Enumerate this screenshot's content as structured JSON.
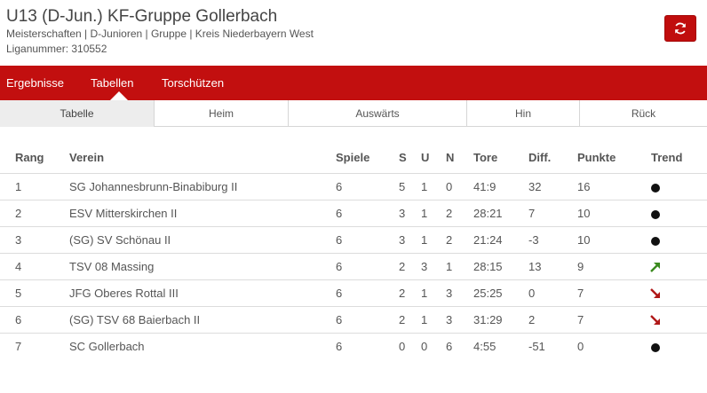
{
  "header": {
    "title": "U13 (D-Jun.) KF-Gruppe Gollerbach",
    "subtitle": "Meisterschaften | D-Junioren | Gruppe | Kreis Niederbayern West",
    "liganummer": "Liganummer: 310552",
    "refresh_icon": "refresh-icon"
  },
  "colors": {
    "brand_red": "#c20f0f",
    "trend_up": "#3a8a1e",
    "trend_down": "#b01818",
    "trend_same": "#111111"
  },
  "nav": {
    "items": [
      {
        "label": "Ergebnisse"
      },
      {
        "label": "Tabellen"
      },
      {
        "label": "Torschützen"
      }
    ],
    "active": "Tabellen"
  },
  "subtabs": {
    "items": [
      {
        "label": "Tabelle"
      },
      {
        "label": "Heim"
      },
      {
        "label": "Auswärts"
      },
      {
        "label": "Hin"
      },
      {
        "label": "Rück"
      }
    ],
    "active": "Tabelle"
  },
  "table": {
    "headers": {
      "rang": "Rang",
      "verein": "Verein",
      "spiele": "Spiele",
      "s": "S",
      "u": "U",
      "n": "N",
      "tore": "Tore",
      "diff": "Diff.",
      "punkte": "Punkte",
      "trend": "Trend"
    },
    "rows": [
      {
        "rang": "1",
        "verein": "SG Johannesbrunn-Binabiburg II",
        "spiele": "6",
        "s": "5",
        "u": "1",
        "n": "0",
        "tore": "41:9",
        "diff": "32",
        "punkte": "16",
        "trend": "same"
      },
      {
        "rang": "2",
        "verein": "ESV Mitterskirchen II",
        "spiele": "6",
        "s": "3",
        "u": "1",
        "n": "2",
        "tore": "28:21",
        "diff": "7",
        "punkte": "10",
        "trend": "same"
      },
      {
        "rang": "3",
        "verein": "(SG) SV Schönau II",
        "spiele": "6",
        "s": "3",
        "u": "1",
        "n": "2",
        "tore": "21:24",
        "diff": "-3",
        "punkte": "10",
        "trend": "same"
      },
      {
        "rang": "4",
        "verein": "TSV 08 Massing",
        "spiele": "6",
        "s": "2",
        "u": "3",
        "n": "1",
        "tore": "28:15",
        "diff": "13",
        "punkte": "9",
        "trend": "up"
      },
      {
        "rang": "5",
        "verein": "JFG Oberes Rottal III",
        "spiele": "6",
        "s": "2",
        "u": "1",
        "n": "3",
        "tore": "25:25",
        "diff": "0",
        "punkte": "7",
        "trend": "down"
      },
      {
        "rang": "6",
        "verein": "(SG) TSV 68 Baierbach II",
        "spiele": "6",
        "s": "2",
        "u": "1",
        "n": "3",
        "tore": "31:29",
        "diff": "2",
        "punkte": "7",
        "trend": "down"
      },
      {
        "rang": "7",
        "verein": "SC Gollerbach",
        "spiele": "6",
        "s": "0",
        "u": "0",
        "n": "6",
        "tore": "4:55",
        "diff": "-51",
        "punkte": "0",
        "trend": "same"
      }
    ]
  }
}
